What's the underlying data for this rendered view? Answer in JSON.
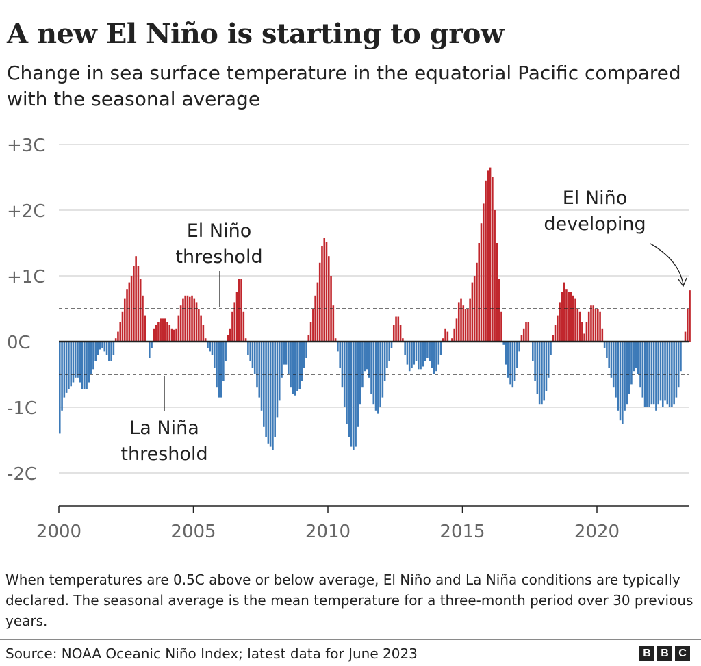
{
  "title": "A new El Niño is starting to grow",
  "subtitle": "Change in sea surface temperature in the equatorial Pacific compared with the seasonal average",
  "note": "When temperatures are 0.5C above or below average, El Niño and La Niña conditions are typically declared. The seasonal average is the mean temperature for a three-month period over 30 previous years.",
  "source": "Source: NOAA Oceanic Niño Index; latest data for June 2023",
  "logo": [
    "B",
    "B",
    "C"
  ],
  "colors": {
    "positive": "#c1272d",
    "negative": "#3d7ab8",
    "grid": "#d9d9d9",
    "zero": "#222222"
  },
  "chart_data": {
    "type": "bar",
    "x_start": "2000-01",
    "x_interval": "month",
    "ylim": [
      -2.5,
      3
    ],
    "yticks": [
      3,
      2,
      1,
      0,
      -1,
      -2
    ],
    "ytick_labels": [
      "+3C",
      "+2C",
      "+1C",
      "0C",
      "-1C",
      "-2C"
    ],
    "xticks": [
      2000,
      2005,
      2010,
      2015,
      2020
    ],
    "xtick_labels": [
      "2000",
      "2005",
      "2010",
      "2015",
      "2020"
    ],
    "grid": true,
    "thresholds": [
      0.5,
      -0.5
    ],
    "annotations": [
      {
        "text": [
          "El Niño",
          "threshold"
        ],
        "target": "0.5"
      },
      {
        "text": [
          "La Niña",
          "threshold"
        ],
        "target": "-0.5"
      },
      {
        "text": [
          "El Niño",
          "developing"
        ],
        "target": "2023-06"
      }
    ],
    "values": [
      -1.4,
      -1.05,
      -0.85,
      -0.78,
      -0.72,
      -0.68,
      -0.62,
      -0.55,
      -0.55,
      -0.62,
      -0.72,
      -0.72,
      -0.72,
      -0.62,
      -0.5,
      -0.42,
      -0.3,
      -0.2,
      -0.12,
      -0.1,
      -0.15,
      -0.2,
      -0.3,
      -0.3,
      -0.2,
      0.05,
      0.15,
      0.3,
      0.45,
      0.65,
      0.8,
      0.9,
      1.0,
      1.15,
      1.3,
      1.15,
      0.95,
      0.7,
      0.4,
      0.0,
      -0.25,
      -0.1,
      0.2,
      0.25,
      0.3,
      0.35,
      0.35,
      0.35,
      0.3,
      0.25,
      0.2,
      0.18,
      0.2,
      0.4,
      0.55,
      0.65,
      0.7,
      0.7,
      0.68,
      0.7,
      0.65,
      0.6,
      0.5,
      0.4,
      0.25,
      0.05,
      -0.1,
      -0.15,
      -0.2,
      -0.4,
      -0.7,
      -0.85,
      -0.85,
      -0.6,
      -0.3,
      0.1,
      0.2,
      0.45,
      0.6,
      0.75,
      0.95,
      0.95,
      0.45,
      0.05,
      -0.2,
      -0.3,
      -0.4,
      -0.5,
      -0.7,
      -0.85,
      -1.05,
      -1.3,
      -1.45,
      -1.55,
      -1.6,
      -1.65,
      -1.45,
      -1.15,
      -0.9,
      -0.55,
      -0.35,
      -0.35,
      -0.5,
      -0.7,
      -0.8,
      -0.82,
      -0.75,
      -0.72,
      -0.6,
      -0.4,
      -0.25,
      0.1,
      0.3,
      0.5,
      0.7,
      0.9,
      1.2,
      1.45,
      1.58,
      1.52,
      1.3,
      1.0,
      0.55,
      0.05,
      -0.15,
      -0.4,
      -0.7,
      -1.0,
      -1.25,
      -1.45,
      -1.6,
      -1.65,
      -1.6,
      -1.3,
      -0.95,
      -0.7,
      -0.45,
      -0.42,
      -0.55,
      -0.8,
      -0.95,
      -1.05,
      -1.1,
      -1.0,
      -0.85,
      -0.6,
      -0.4,
      -0.3,
      -0.1,
      0.25,
      0.38,
      0.38,
      0.25,
      0.05,
      -0.2,
      -0.35,
      -0.45,
      -0.4,
      -0.35,
      -0.3,
      -0.42,
      -0.42,
      -0.38,
      -0.3,
      -0.25,
      -0.3,
      -0.4,
      -0.5,
      -0.45,
      -0.35,
      -0.2,
      0.05,
      0.2,
      0.15,
      0.0,
      0.05,
      0.2,
      0.35,
      0.6,
      0.65,
      0.55,
      0.5,
      0.5,
      0.65,
      0.9,
      1.0,
      1.2,
      1.5,
      1.8,
      2.1,
      2.45,
      2.6,
      2.65,
      2.5,
      2.0,
      1.5,
      0.95,
      0.45,
      -0.05,
      -0.35,
      -0.55,
      -0.65,
      -0.7,
      -0.6,
      -0.4,
      -0.15,
      0.1,
      0.2,
      0.3,
      0.3,
      0.0,
      -0.3,
      -0.6,
      -0.8,
      -0.95,
      -0.95,
      -0.9,
      -0.75,
      -0.55,
      -0.2,
      0.1,
      0.25,
      0.4,
      0.6,
      0.75,
      0.9,
      0.8,
      0.75,
      0.75,
      0.7,
      0.65,
      0.5,
      0.45,
      0.3,
      0.12,
      0.3,
      0.45,
      0.55,
      0.55,
      0.5,
      0.5,
      0.45,
      0.2,
      -0.1,
      -0.25,
      -0.4,
      -0.55,
      -0.7,
      -0.85,
      -1.05,
      -1.2,
      -1.25,
      -1.05,
      -0.95,
      -0.8,
      -0.65,
      -0.45,
      -0.4,
      -0.5,
      -0.7,
      -0.85,
      -1.0,
      -1.0,
      -1.0,
      -0.95,
      -0.95,
      -1.05,
      -0.95,
      -0.9,
      -1.0,
      -0.9,
      -0.95,
      -1.0,
      -1.0,
      -0.95,
      -0.85,
      -0.7,
      -0.45,
      0.0,
      0.15,
      0.5,
      0.78
    ]
  }
}
